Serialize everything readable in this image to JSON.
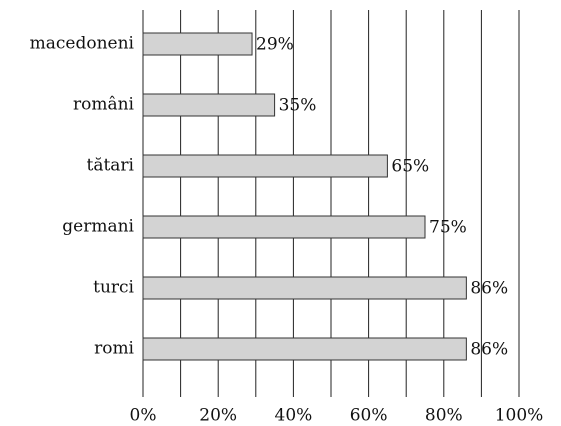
{
  "chart_data": {
    "type": "barh",
    "categories": [
      "macedoneni",
      "români",
      "tătari",
      "germani",
      "turci",
      "romi"
    ],
    "values": [
      29,
      35,
      65,
      75,
      86,
      86
    ],
    "value_labels": [
      "29%",
      "35%",
      "65%",
      "75%",
      "86%",
      "86%"
    ],
    "color": "#d3d3d3",
    "xlim": [
      0,
      100
    ],
    "xticks": [
      {
        "value": 0,
        "label": "0%"
      },
      {
        "value": 20,
        "label": "20%"
      },
      {
        "value": 40,
        "label": "40%"
      },
      {
        "value": 60,
        "label": "60%"
      },
      {
        "value": 80,
        "label": "80%"
      },
      {
        "value": 100,
        "label": "100%"
      }
    ],
    "minor_xticks": [
      10,
      30,
      50,
      70,
      90
    ],
    "grid": true
  }
}
